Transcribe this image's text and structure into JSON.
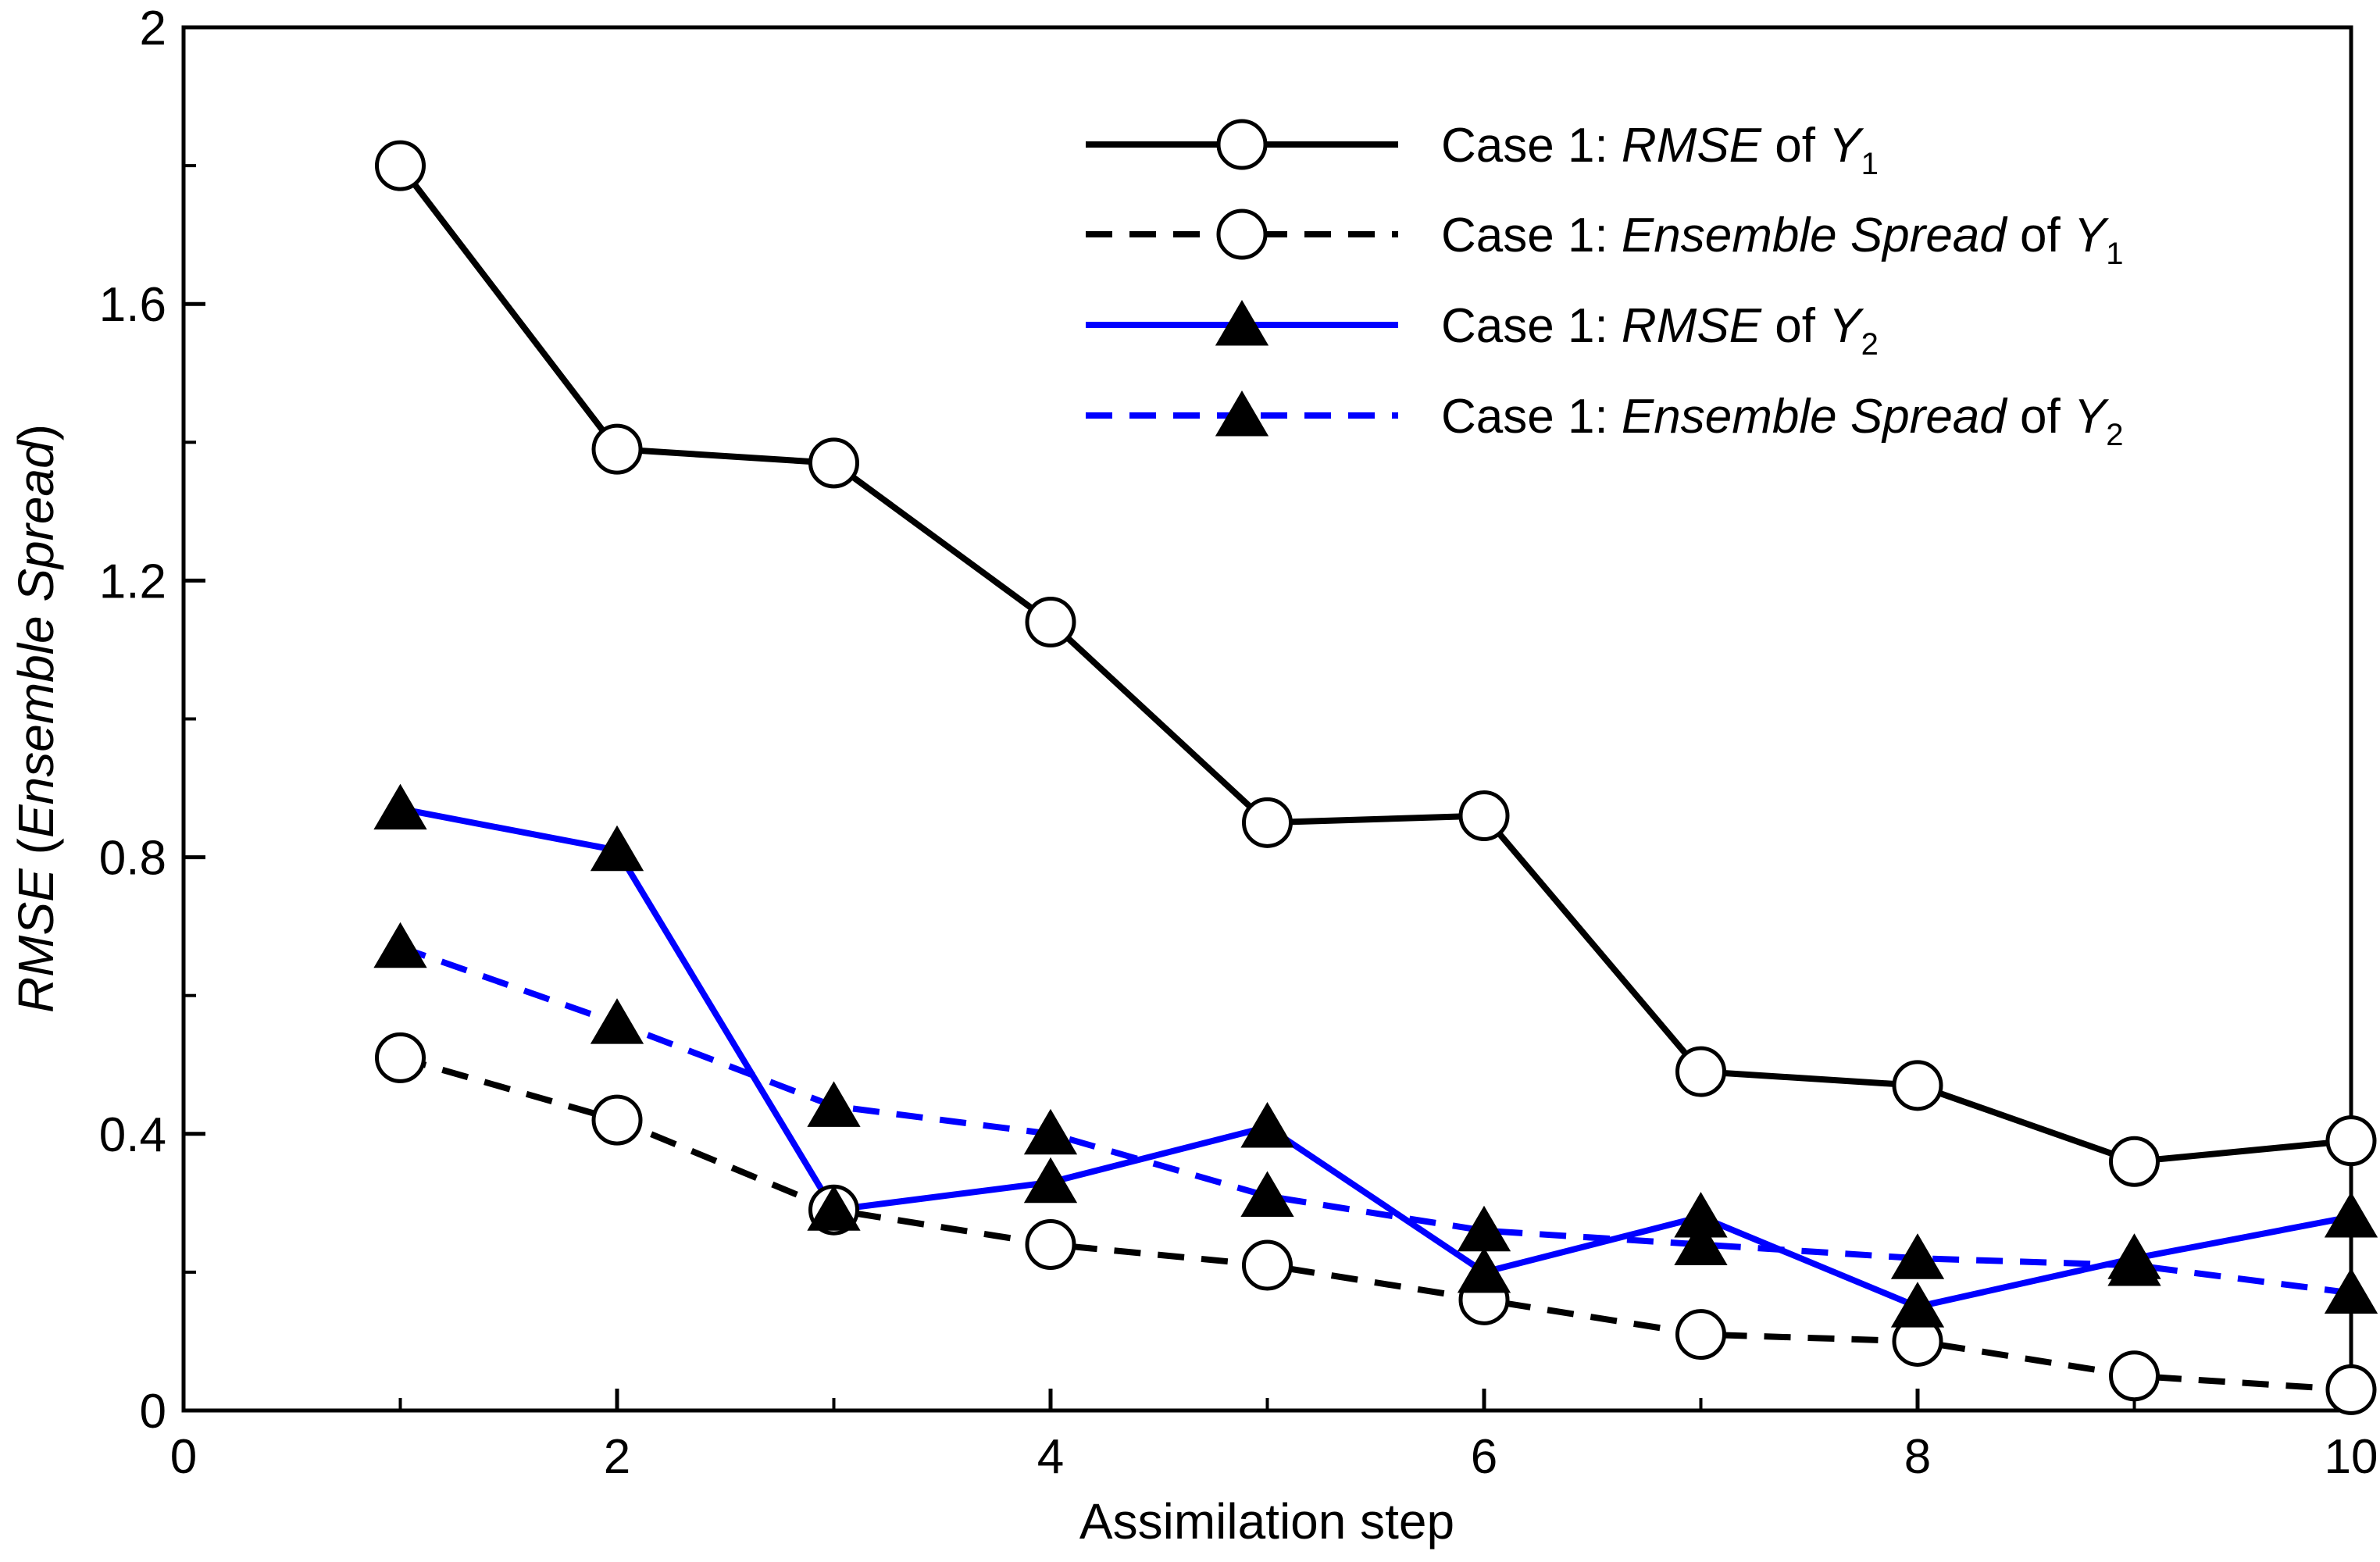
{
  "chart_data": {
    "type": "line",
    "title": "",
    "xlabel": "Assimilation step",
    "ylabel": {
      "parts": [
        {
          "text": "RMSE",
          "italic": true
        },
        {
          "text": " (",
          "italic": false
        },
        {
          "text": "Ensemble Spread",
          "italic": true
        },
        {
          "text": ")",
          "italic": false
        }
      ]
    },
    "xlim": [
      0,
      10
    ],
    "ylim": [
      0,
      2
    ],
    "xticks": [
      0,
      2,
      4,
      6,
      8,
      10
    ],
    "xtick_labels": [
      "0",
      "2",
      "4",
      "6",
      "8",
      "10"
    ],
    "xminor": [
      1,
      3,
      5,
      7,
      9
    ],
    "yticks": [
      0,
      0.4,
      0.8,
      1.2,
      1.6,
      2
    ],
    "ytick_labels": [
      "0",
      "0.4",
      "0.8",
      "1.2",
      "1.6",
      "2"
    ],
    "yminor": [
      0.2,
      0.6,
      1.0,
      1.4,
      1.8
    ],
    "grid": false,
    "legend_position": "top-right",
    "x": [
      1,
      2,
      3,
      4,
      5,
      6,
      7,
      8,
      9,
      10
    ],
    "series": [
      {
        "name": "Case 1: RMSE of Y1",
        "label_parts": [
          {
            "text": "Case 1: ",
            "style": "normal"
          },
          {
            "text": "RMSE",
            "style": "italic"
          },
          {
            "text": " of ",
            "style": "normal"
          },
          {
            "text": "Y",
            "style": "italic"
          },
          {
            "text": "1",
            "style": "sub"
          }
        ],
        "color": "#000000",
        "dash": "solid",
        "marker": "circle",
        "values": [
          1.8,
          1.39,
          1.37,
          1.14,
          0.85,
          0.86,
          0.49,
          0.47,
          0.36,
          0.39
        ]
      },
      {
        "name": "Case 1: Ensemble Spread of Y1",
        "label_parts": [
          {
            "text": "Case 1: ",
            "style": "normal"
          },
          {
            "text": "Ensemble Spread",
            "style": "italic"
          },
          {
            "text": " of ",
            "style": "normal"
          },
          {
            "text": "Y",
            "style": "italic"
          },
          {
            "text": "1",
            "style": "sub"
          }
        ],
        "color": "#000000",
        "dash": "dashed",
        "marker": "circle",
        "values": [
          0.51,
          0.42,
          0.29,
          0.24,
          0.21,
          0.16,
          0.11,
          0.1,
          0.05,
          0.03
        ]
      },
      {
        "name": "Case 1: RMSE of Y2",
        "label_parts": [
          {
            "text": "Case 1: ",
            "style": "normal"
          },
          {
            "text": "RMSE",
            "style": "italic"
          },
          {
            "text": " of ",
            "style": "normal"
          },
          {
            "text": "Y",
            "style": "italic"
          },
          {
            "text": "2",
            "style": "sub"
          }
        ],
        "color": "#0000ff",
        "dash": "solid",
        "marker": "triangle",
        "values": [
          0.87,
          0.81,
          0.29,
          0.33,
          0.41,
          0.2,
          0.28,
          0.15,
          0.22,
          0.28
        ]
      },
      {
        "name": "Case 1: Ensemble Spread of Y2",
        "label_parts": [
          {
            "text": "Case 1: ",
            "style": "normal"
          },
          {
            "text": "Ensemble Spread",
            "style": "italic"
          },
          {
            "text": " of ",
            "style": "normal"
          },
          {
            "text": "Y",
            "style": "italic"
          },
          {
            "text": "2",
            "style": "sub"
          }
        ],
        "color": "#0000ff",
        "dash": "dashed",
        "marker": "triangle",
        "values": [
          0.67,
          0.56,
          0.44,
          0.4,
          0.31,
          0.26,
          0.24,
          0.22,
          0.21,
          0.17
        ]
      }
    ]
  }
}
